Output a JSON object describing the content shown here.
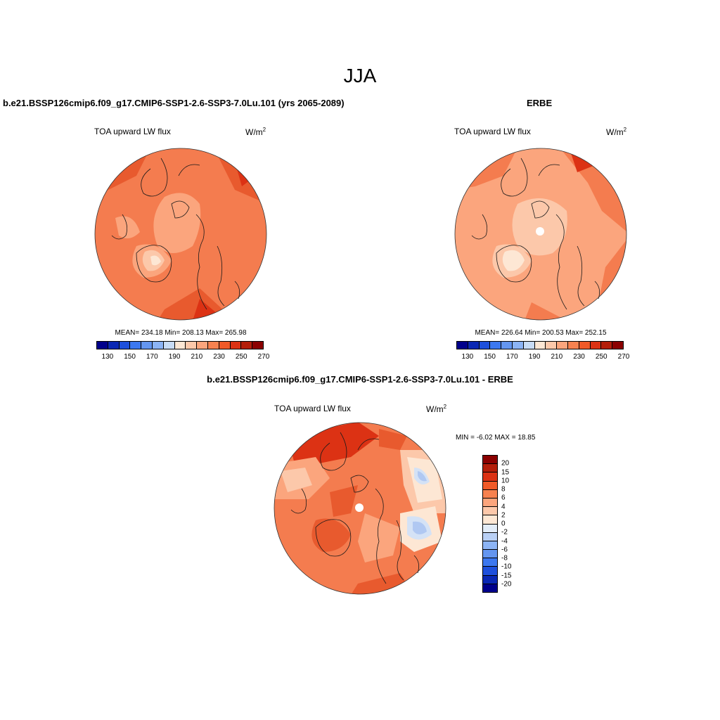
{
  "title": "JJA",
  "units": "W/m",
  "units_sup": "2",
  "panels": [
    {
      "case": "b.e21.BSSP126cmip6.f09_g17.CMIP6-SSP1-2.6-SSP3-7.0Lu.101 (yrs 2065-2089)",
      "label": "TOA upward LW flux",
      "stats": "MEAN= 234.18  Min= 208.13  Max= 265.98"
    },
    {
      "case": "ERBE",
      "label": "TOA upward LW flux",
      "stats": "MEAN= 226.64  Min= 200.53  Max= 252.15"
    },
    {
      "case": "b.e21.BSSP126cmip6.f09_g17.CMIP6-SSP1-2.6-SSP3-7.0Lu.101 - ERBE",
      "label": "TOA upward LW flux",
      "stats": "MIN =  -6.02 MAX =  18.85"
    }
  ],
  "colorbar_main": {
    "colors": [
      "#00008b",
      "#0a28b4",
      "#1e50dc",
      "#3c78f0",
      "#6496f0",
      "#8cb4f5",
      "#c8dcf5",
      "#fde7d4",
      "#fcc8aa",
      "#fba57d",
      "#f78250",
      "#f05a28",
      "#dc3214",
      "#b41e0a",
      "#8b0000"
    ],
    "tick_labels": [
      "130",
      "150",
      "170",
      "190",
      "210",
      "230",
      "250",
      "270"
    ]
  },
  "colorbar_diff": {
    "colors": [
      "#8b0000",
      "#b41e0a",
      "#dc3214",
      "#f05a28",
      "#f78250",
      "#fba57d",
      "#fcc8aa",
      "#fde7d4",
      "#e2ecf8",
      "#b9d0f5",
      "#8cb4f5",
      "#6496f0",
      "#3c78f0",
      "#1e50dc",
      "#0a28b4",
      "#00008b"
    ],
    "tick_labels": [
      "20",
      "15",
      "10",
      "8",
      "6",
      "4",
      "2",
      "0",
      "-2",
      "-4",
      "-6",
      "-8",
      "-10",
      "-15",
      "-20"
    ]
  },
  "map_colors": {
    "base": "#f47c4f",
    "light": "#fba57d",
    "lighter": "#fcc8aa",
    "pale": "#fde7d4",
    "dark": "#e85a2e",
    "darker": "#dc3214",
    "blue_light": "#d4e2f6",
    "blue": "#b0c8f2",
    "coast": "#1a1a1a"
  }
}
